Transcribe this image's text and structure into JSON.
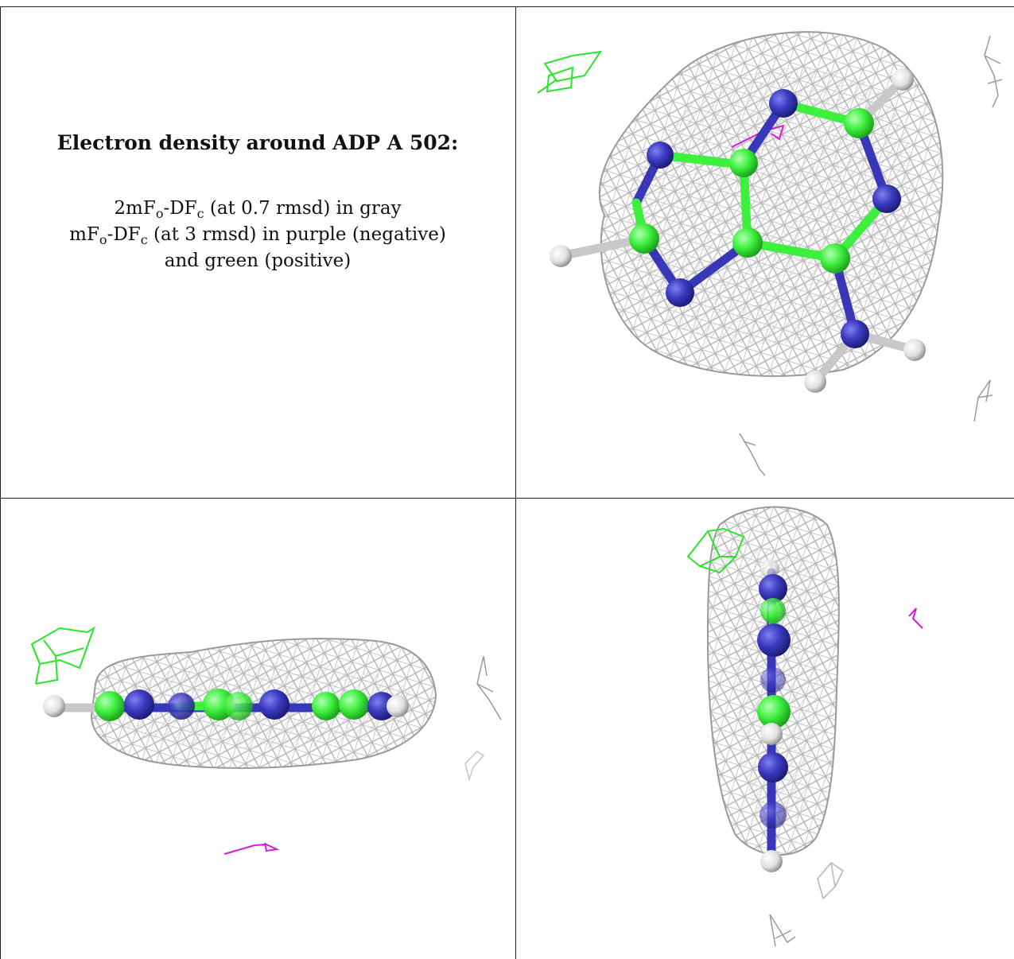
{
  "caption": {
    "title": "Electron density around ADP A 502:",
    "line1_pre": "2mF",
    "line1_sub1": "o",
    "line1_mid": "-DF",
    "line1_sub2": "c",
    "line1_post": " (at 0.7 rmsd) in gray",
    "line2_pre": "mF",
    "line2_sub1": "o",
    "line2_mid": "-DF",
    "line2_sub2": "c",
    "line2_post": " (at 3 rmsd) in purple (negative)",
    "line3": "and green (positive)"
  },
  "colors": {
    "mesh_gray": "#b4b4b4",
    "carbon_green": "#3ef03e",
    "nitrogen_blue": "#3737b8",
    "hydrogen_white": "#e8e8e8",
    "negative_purple": "#d21ed2",
    "positive_green": "#28e628"
  },
  "panels": [
    {
      "view": "top",
      "description_icon": "molecule-density-icon"
    },
    {
      "view": "side",
      "description_icon": "molecule-density-icon"
    },
    {
      "view": "end",
      "description_icon": "molecule-density-icon"
    }
  ]
}
